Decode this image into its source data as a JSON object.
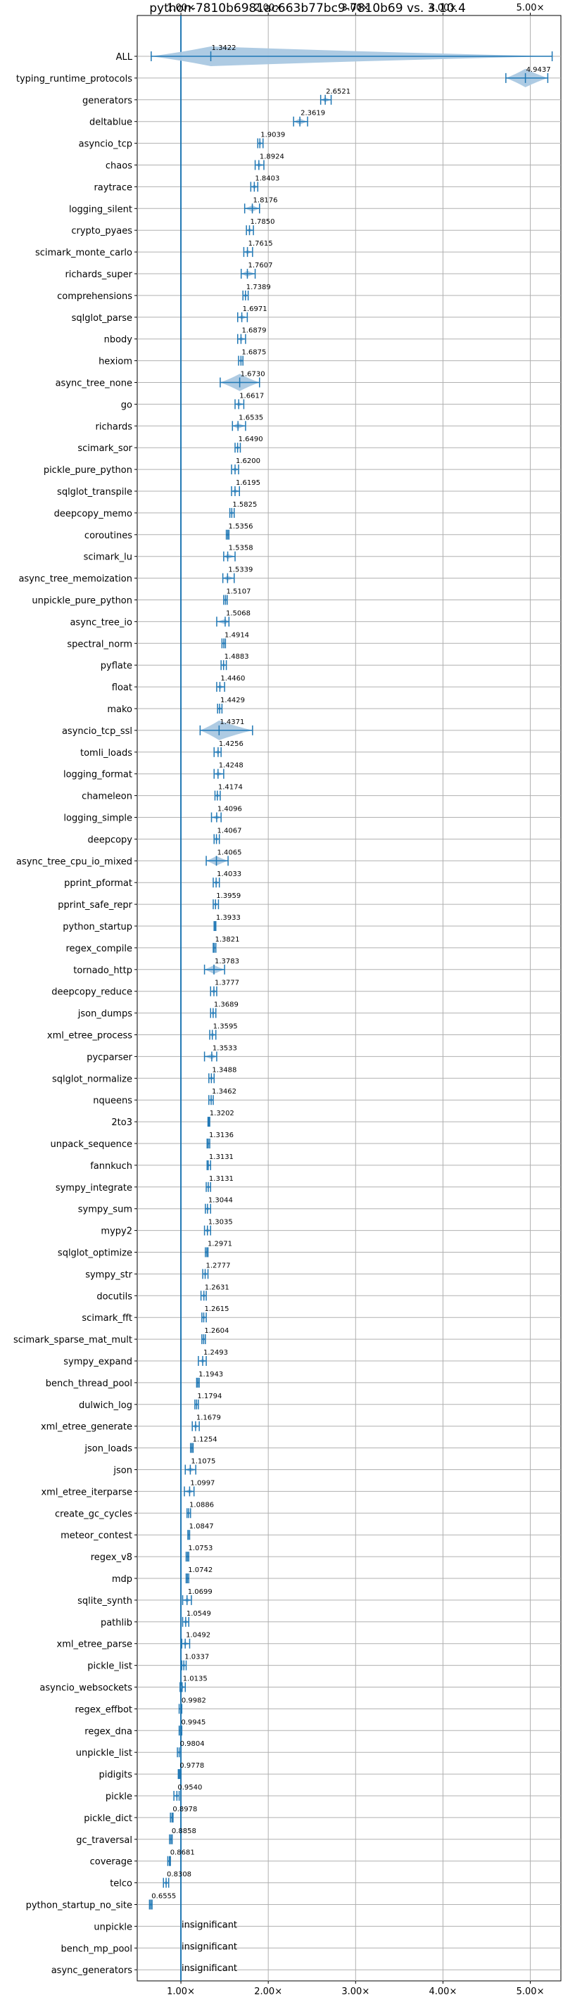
{
  "chart_data": {
    "type": "violin",
    "title": "python-7810b6981ac663b77bc9-7810b69 vs. 3.10.4",
    "xlabel": "",
    "ylabel": "",
    "x_scale": "linear",
    "xlim": [
      0.5,
      5.35
    ],
    "x_ticks": [
      1,
      2,
      3,
      4,
      5
    ],
    "x_tick_labels": [
      "1.00×",
      "2.00×",
      "3.00×",
      "4.00×",
      "5.00×"
    ],
    "x_tick_positions": [
      "top",
      "bottom"
    ],
    "reference_line": 1.0,
    "grid": true,
    "colors": {
      "violin": "#aac8e2",
      "line": "#1f77b4",
      "grid": "#b0b0b0"
    },
    "categories": [
      "ALL",
      "typing_runtime_protocols",
      "generators",
      "deltablue",
      "asyncio_tcp",
      "chaos",
      "raytrace",
      "logging_silent",
      "crypto_pyaes",
      "scimark_monte_carlo",
      "richards_super",
      "comprehensions",
      "sqlglot_parse",
      "nbody",
      "hexiom",
      "async_tree_none",
      "go",
      "richards",
      "scimark_sor",
      "pickle_pure_python",
      "sqlglot_transpile",
      "deepcopy_memo",
      "coroutines",
      "scimark_lu",
      "async_tree_memoization",
      "unpickle_pure_python",
      "async_tree_io",
      "spectral_norm",
      "pyflate",
      "float",
      "mako",
      "asyncio_tcp_ssl",
      "tomli_loads",
      "logging_format",
      "chameleon",
      "logging_simple",
      "deepcopy",
      "async_tree_cpu_io_mixed",
      "pprint_pformat",
      "pprint_safe_repr",
      "python_startup",
      "regex_compile",
      "tornado_http",
      "deepcopy_reduce",
      "json_dumps",
      "xml_etree_process",
      "pycparser",
      "sqlglot_normalize",
      "nqueens",
      "2to3",
      "unpack_sequence",
      "fannkuch",
      "sympy_integrate",
      "sympy_sum",
      "mypy2",
      "sqlglot_optimize",
      "sympy_str",
      "docutils",
      "scimark_fft",
      "scimark_sparse_mat_mult",
      "sympy_expand",
      "bench_thread_pool",
      "dulwich_log",
      "xml_etree_generate",
      "json_loads",
      "json",
      "xml_etree_iterparse",
      "create_gc_cycles",
      "meteor_contest",
      "regex_v8",
      "mdp",
      "sqlite_synth",
      "pathlib",
      "xml_etree_parse",
      "pickle_list",
      "asyncio_websockets",
      "regex_effbot",
      "regex_dna",
      "unpickle_list",
      "pidigits",
      "pickle",
      "pickle_dict",
      "gc_traversal",
      "coverage",
      "telco",
      "python_startup_no_site",
      "unpickle",
      "bench_mp_pool",
      "async_generators"
    ],
    "values": [
      1.3422,
      4.9437,
      2.6521,
      2.3619,
      1.9039,
      1.8924,
      1.8403,
      1.8176,
      1.785,
      1.7615,
      1.7607,
      1.7389,
      1.6971,
      1.6879,
      1.6875,
      1.673,
      1.6617,
      1.6535,
      1.649,
      1.62,
      1.6195,
      1.5825,
      1.5356,
      1.5358,
      1.5339,
      1.5107,
      1.5068,
      1.4914,
      1.4883,
      1.446,
      1.4429,
      1.4371,
      1.4256,
      1.4248,
      1.4174,
      1.4096,
      1.4067,
      1.4065,
      1.4033,
      1.3959,
      1.3933,
      1.3821,
      1.3783,
      1.3777,
      1.3689,
      1.3595,
      1.3533,
      1.3488,
      1.3462,
      1.3202,
      1.3136,
      1.3131,
      1.3131,
      1.3044,
      1.3035,
      1.2971,
      1.2777,
      1.2631,
      1.2615,
      1.2604,
      1.2493,
      1.1943,
      1.1794,
      1.1679,
      1.1254,
      1.1075,
      1.0997,
      1.0886,
      1.0847,
      1.0753,
      1.0742,
      1.0699,
      1.0549,
      1.0492,
      1.0337,
      1.0135,
      0.9982,
      0.9945,
      0.9804,
      0.9778,
      0.954,
      0.8978,
      0.8858,
      0.8681,
      0.8308,
      0.6555,
      null,
      null,
      null
    ],
    "labels": [
      "1.3422",
      "4.9437",
      "2.6521",
      "2.3619",
      "1.9039",
      "1.8924",
      "1.8403",
      "1.8176",
      "1.7850",
      "1.7615",
      "1.7607",
      "1.7389",
      "1.6971",
      "1.6879",
      "1.6875",
      "1.6730",
      "1.6617",
      "1.6535",
      "1.6490",
      "1.6200",
      "1.6195",
      "1.5825",
      "1.5356",
      "1.5358",
      "1.5339",
      "1.5107",
      "1.5068",
      "1.4914",
      "1.4883",
      "1.4460",
      "1.4429",
      "1.4371",
      "1.4256",
      "1.4248",
      "1.4174",
      "1.4096",
      "1.4067",
      "1.4065",
      "1.4033",
      "1.3959",
      "1.3933",
      "1.3821",
      "1.3783",
      "1.3777",
      "1.3689",
      "1.3595",
      "1.3533",
      "1.3488",
      "1.3462",
      "1.3202",
      "1.3136",
      "1.3131",
      "1.3131",
      "1.3044",
      "1.3035",
      "1.2971",
      "1.2777",
      "1.2631",
      "1.2615",
      "1.2604",
      "1.2493",
      "1.1943",
      "1.1794",
      "1.1679",
      "1.1254",
      "1.1075",
      "1.0997",
      "1.0886",
      "1.0847",
      "1.0753",
      "1.0742",
      "1.0699",
      "1.0549",
      "1.0492",
      "1.0337",
      "1.0135",
      "0.9982",
      "0.9945",
      "0.9804",
      "0.9778",
      "0.9540",
      "0.8978",
      "0.8858",
      "0.8681",
      "0.8308",
      "0.6555",
      "insignificant",
      "insignificant",
      "insignificant"
    ],
    "ranges": [
      [
        0.66,
        5.25
      ],
      [
        4.72,
        5.2
      ],
      [
        2.6,
        2.72
      ],
      [
        2.29,
        2.45
      ],
      [
        1.88,
        1.94
      ],
      [
        1.85,
        1.95
      ],
      [
        1.8,
        1.88
      ],
      [
        1.73,
        1.9
      ],
      [
        1.75,
        1.83
      ],
      [
        1.72,
        1.82
      ],
      [
        1.69,
        1.85
      ],
      [
        1.71,
        1.77
      ],
      [
        1.65,
        1.76
      ],
      [
        1.65,
        1.74
      ],
      [
        1.66,
        1.71
      ],
      [
        1.45,
        1.9
      ],
      [
        1.62,
        1.72
      ],
      [
        1.59,
        1.74
      ],
      [
        1.62,
        1.68
      ],
      [
        1.58,
        1.66
      ],
      [
        1.58,
        1.67
      ],
      [
        1.56,
        1.61
      ],
      [
        1.52,
        1.55
      ],
      [
        1.49,
        1.62
      ],
      [
        1.48,
        1.61
      ],
      [
        1.49,
        1.53
      ],
      [
        1.41,
        1.55
      ],
      [
        1.47,
        1.51
      ],
      [
        1.46,
        1.52
      ],
      [
        1.41,
        1.5
      ],
      [
        1.42,
        1.47
      ],
      [
        1.22,
        1.82
      ],
      [
        1.38,
        1.46
      ],
      [
        1.38,
        1.49
      ],
      [
        1.39,
        1.45
      ],
      [
        1.35,
        1.46
      ],
      [
        1.38,
        1.44
      ],
      [
        1.29,
        1.54
      ],
      [
        1.37,
        1.44
      ],
      [
        1.37,
        1.43
      ],
      [
        1.38,
        1.4
      ],
      [
        1.37,
        1.4
      ],
      [
        1.27,
        1.5
      ],
      [
        1.34,
        1.41
      ],
      [
        1.34,
        1.4
      ],
      [
        1.33,
        1.4
      ],
      [
        1.27,
        1.41
      ],
      [
        1.32,
        1.38
      ],
      [
        1.32,
        1.37
      ],
      [
        1.31,
        1.33
      ],
      [
        1.3,
        1.33
      ],
      [
        1.3,
        1.34
      ],
      [
        1.29,
        1.34
      ],
      [
        1.28,
        1.34
      ],
      [
        1.27,
        1.34
      ],
      [
        1.28,
        1.31
      ],
      [
        1.25,
        1.31
      ],
      [
        1.23,
        1.29
      ],
      [
        1.24,
        1.29
      ],
      [
        1.24,
        1.28
      ],
      [
        1.2,
        1.29
      ],
      [
        1.18,
        1.21
      ],
      [
        1.16,
        1.2
      ],
      [
        1.13,
        1.21
      ],
      [
        1.11,
        1.14
      ],
      [
        1.05,
        1.17
      ],
      [
        1.04,
        1.15
      ],
      [
        1.07,
        1.11
      ],
      [
        1.08,
        1.1
      ],
      [
        1.06,
        1.09
      ],
      [
        1.06,
        1.09
      ],
      [
        1.02,
        1.12
      ],
      [
        1.02,
        1.09
      ],
      [
        1.01,
        1.1
      ],
      [
        1.01,
        1.06
      ],
      [
        0.99,
        1.05
      ],
      [
        0.98,
        1.01
      ],
      [
        0.98,
        1.01
      ],
      [
        0.96,
        1.0
      ],
      [
        0.97,
        0.99
      ],
      [
        0.92,
        0.98
      ],
      [
        0.88,
        0.91
      ],
      [
        0.87,
        0.9
      ],
      [
        0.85,
        0.88
      ],
      [
        0.8,
        0.86
      ],
      [
        0.64,
        0.67
      ],
      null,
      null,
      null
    ],
    "annotation_text": "insignificant"
  }
}
